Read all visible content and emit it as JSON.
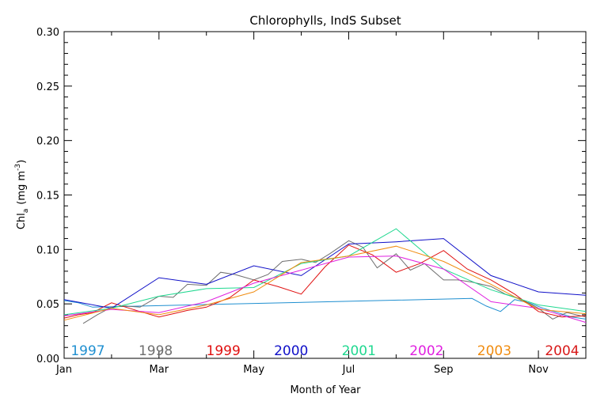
{
  "chart_data": {
    "type": "line",
    "title": "Chlorophylls, IndS Subset",
    "xlabel": "Month of Year",
    "ylabel": "Chl",
    "ylabel_sub": "a",
    "ylabel_unit": "(mg m",
    "ylabel_sup": "-3",
    "ylabel_close": ")",
    "xlim": [
      1,
      12
    ],
    "ylim": [
      0,
      0.3
    ],
    "x_ticks": [
      {
        "value": 1,
        "label": "Jan"
      },
      {
        "value": 3,
        "label": "Mar"
      },
      {
        "value": 5,
        "label": "May"
      },
      {
        "value": 7,
        "label": "Jul"
      },
      {
        "value": 9,
        "label": "Sep"
      },
      {
        "value": 11,
        "label": "Nov"
      }
    ],
    "y_ticks": [
      {
        "value": 0.0,
        "label": "0.00"
      },
      {
        "value": 0.05,
        "label": "0.05"
      },
      {
        "value": 0.1,
        "label": "0.10"
      },
      {
        "value": 0.15,
        "label": "0.15"
      },
      {
        "value": 0.2,
        "label": "0.20"
      },
      {
        "value": 0.25,
        "label": "0.25"
      },
      {
        "value": 0.3,
        "label": "0.30"
      }
    ],
    "grid": false,
    "legend": "bottom",
    "series": [
      {
        "name": "1997",
        "color": "#1f8fd0",
        "x": [
          1.0,
          1.3,
          1.6,
          9.6,
          9.9,
          10.2,
          10.5,
          10.8,
          11.1,
          11.4,
          11.7,
          12.0
        ],
        "y": [
          0.053,
          0.051,
          0.047,
          0.055,
          0.048,
          0.043,
          0.054,
          0.051,
          0.046,
          0.042,
          0.038,
          0.036
        ]
      },
      {
        "name": "1998",
        "color": "#6e6e6e",
        "x": [
          1.4,
          1.7,
          2.0,
          2.3,
          2.6,
          3.0,
          3.3,
          3.6,
          4.0,
          4.3,
          4.6,
          5.0,
          5.3,
          5.6,
          6.0,
          6.3,
          6.6,
          7.0,
          7.3,
          7.6,
          8.0,
          8.3,
          8.6,
          9.0,
          9.3,
          9.6,
          10.0,
          10.3,
          10.6,
          11.0,
          11.3,
          11.6,
          12.0
        ],
        "y": [
          0.032,
          0.04,
          0.047,
          0.048,
          0.047,
          0.057,
          0.056,
          0.068,
          0.067,
          0.079,
          0.077,
          0.072,
          0.077,
          0.089,
          0.091,
          0.088,
          0.096,
          0.108,
          0.102,
          0.083,
          0.096,
          0.081,
          0.087,
          0.072,
          0.072,
          0.07,
          0.066,
          0.059,
          0.055,
          0.046,
          0.036,
          0.042,
          0.038
        ]
      },
      {
        "name": "1999",
        "color": "#e01010",
        "x": [
          1.0,
          1.3,
          1.6,
          2.0,
          2.3,
          2.6,
          3.0,
          3.3,
          3.6,
          4.0,
          4.5,
          5.0,
          5.5,
          6.0,
          6.5,
          7.0,
          7.5,
          8.0,
          8.5,
          9.0,
          9.5,
          10.0,
          10.5,
          11.0,
          11.5,
          12.0
        ],
        "y": [
          0.037,
          0.04,
          0.042,
          0.051,
          0.047,
          0.043,
          0.038,
          0.041,
          0.044,
          0.047,
          0.056,
          0.072,
          0.066,
          0.059,
          0.084,
          0.104,
          0.095,
          0.079,
          0.087,
          0.099,
          0.082,
          0.072,
          0.059,
          0.043,
          0.038,
          0.039
        ]
      },
      {
        "name": "2000",
        "color": "#1010c8",
        "x": [
          1.0,
          2.0,
          3.0,
          4.0,
          5.0,
          6.0,
          7.0,
          8.0,
          9.0,
          10.0,
          11.0,
          12.0
        ],
        "y": [
          0.054,
          0.046,
          0.074,
          0.068,
          0.085,
          0.076,
          0.105,
          0.107,
          0.11,
          0.076,
          0.061,
          0.058
        ]
      },
      {
        "name": "2001",
        "color": "#20d890",
        "x": [
          1.0,
          2.0,
          3.0,
          4.0,
          5.0,
          6.0,
          7.0,
          8.0,
          9.0,
          10.0,
          11.0,
          12.0
        ],
        "y": [
          0.04,
          0.046,
          0.057,
          0.064,
          0.065,
          0.087,
          0.094,
          0.119,
          0.082,
          0.063,
          0.049,
          0.043
        ]
      },
      {
        "name": "2002",
        "color": "#e020e0",
        "x": [
          1.0,
          2.0,
          3.0,
          4.0,
          5.0,
          6.0,
          7.0,
          8.0,
          9.0,
          10.0,
          11.0,
          12.0
        ],
        "y": [
          0.039,
          0.045,
          0.042,
          0.052,
          0.069,
          0.081,
          0.093,
          0.094,
          0.082,
          0.052,
          0.046,
          0.033
        ]
      },
      {
        "name": "2003",
        "color": "#f08c10",
        "x": [
          1.0,
          2.0,
          3.0,
          4.0,
          5.0,
          6.0,
          7.0,
          8.0,
          9.0,
          10.0,
          11.0,
          12.0
        ],
        "y": [
          0.035,
          0.046,
          0.04,
          0.049,
          0.061,
          0.088,
          0.094,
          0.103,
          0.089,
          0.068,
          0.045,
          0.041
        ]
      },
      {
        "name": "2004",
        "color": "#d81818",
        "x": [],
        "y": []
      }
    ]
  }
}
